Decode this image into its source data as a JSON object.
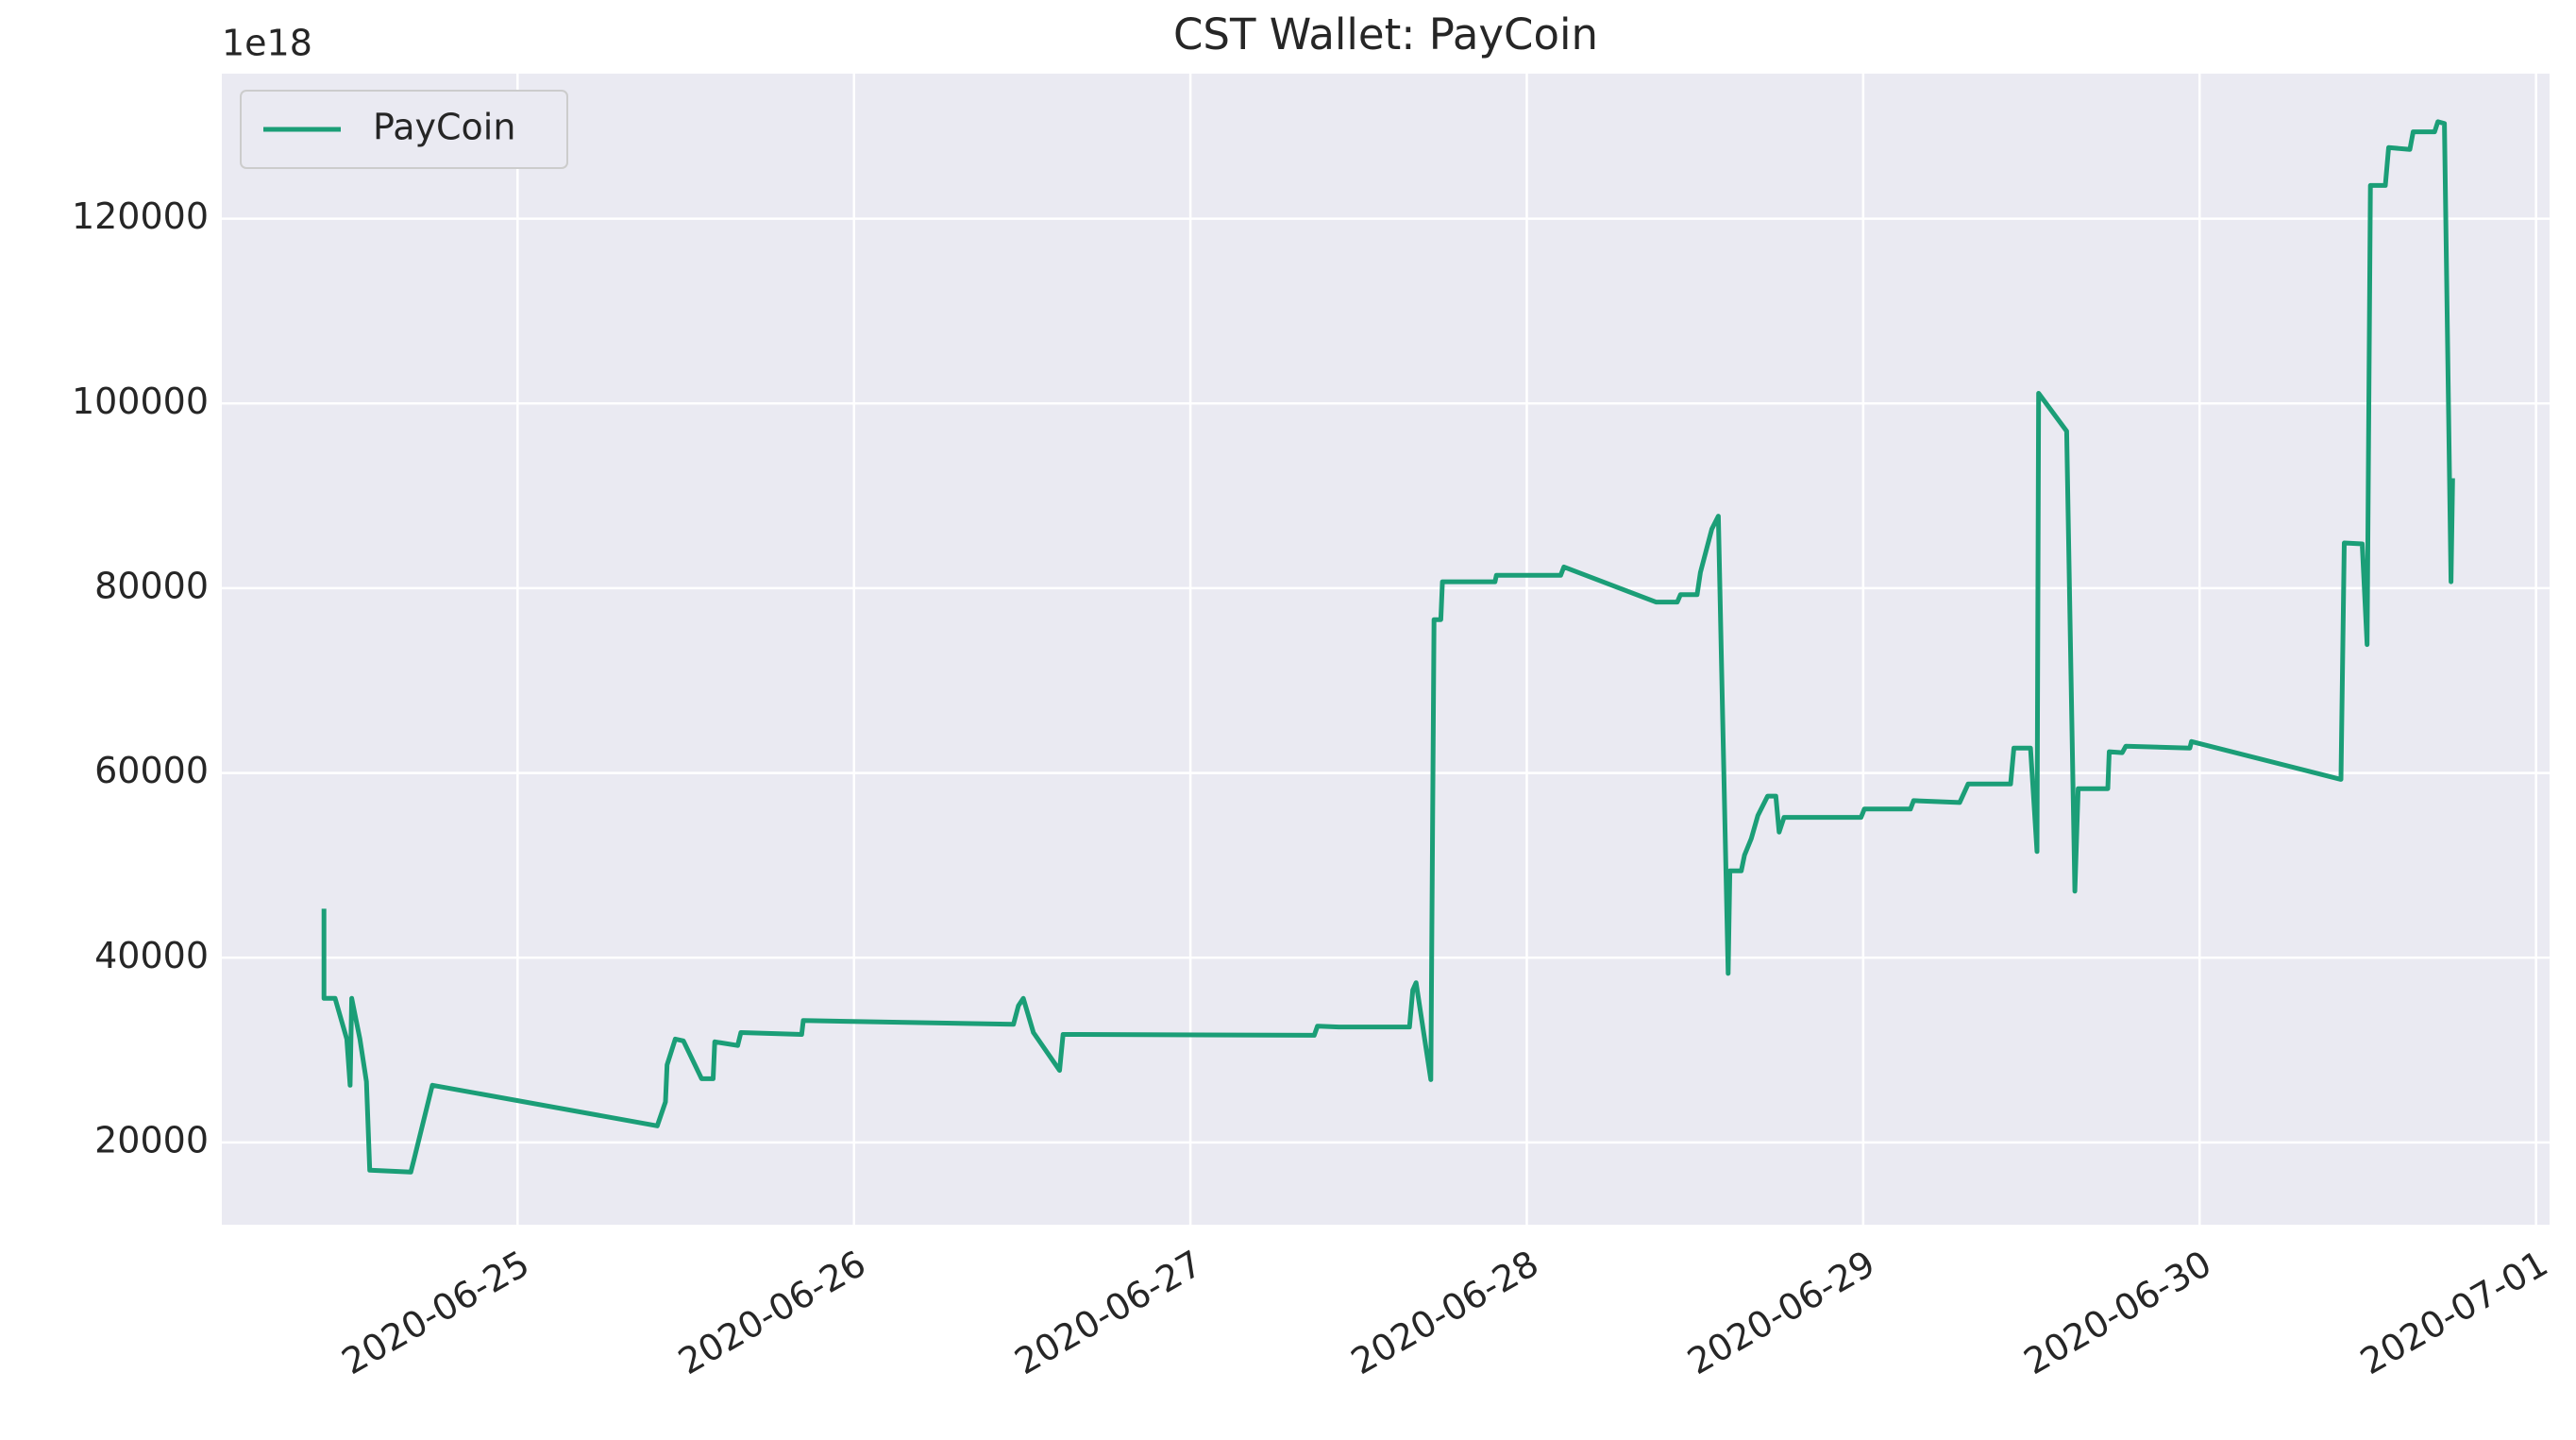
{
  "chart_data": {
    "type": "line",
    "title": "CST Wallet: PayCoin",
    "offset_label": "1e18",
    "x": [
      "2020-06-24T10:11",
      "2020-06-24T10:11",
      "2020-06-24T10:59",
      "2020-06-24T11:49",
      "2020-06-24T12:03",
      "2020-06-24T12:10",
      "2020-06-24T12:45",
      "2020-06-24T13:13",
      "2020-06-24T13:27",
      "2020-06-24T16:23",
      "2020-06-24T16:37",
      "2020-06-24T17:55",
      "2020-06-25T09:58",
      "2020-06-25T10:33",
      "2020-06-25T10:40",
      "2020-06-25T11:15",
      "2020-06-25T11:50",
      "2020-06-25T13:08",
      "2020-06-25T13:57",
      "2020-06-25T14:04",
      "2020-06-25T15:42",
      "2020-06-25T15:56",
      "2020-06-25T20:16",
      "2020-06-25T20:23",
      "2020-06-26T11:23",
      "2020-06-26T11:44",
      "2020-06-26T12:05",
      "2020-06-26T12:48",
      "2020-06-26T14:40",
      "2020-06-26T14:55",
      "2020-06-27T08:50",
      "2020-06-27T09:04",
      "2020-06-27T10:35",
      "2020-06-27T15:38",
      "2020-06-27T15:52",
      "2020-06-27T16:06",
      "2020-06-27T17:09",
      "2020-06-27T17:23",
      "2020-06-27T17:52",
      "2020-06-27T17:59",
      "2020-06-27T21:44",
      "2020-06-27T21:50",
      "2020-06-28T02:25",
      "2020-06-28T02:39",
      "2020-06-28T09:13",
      "2020-06-28T10:44",
      "2020-06-28T10:58",
      "2020-06-28T12:09",
      "2020-06-28T12:23",
      "2020-06-28T13:12",
      "2020-06-28T13:40",
      "2020-06-28T14:22",
      "2020-06-28T14:29",
      "2020-06-28T15:18",
      "2020-06-28T15:32",
      "2020-06-28T16:01",
      "2020-06-28T16:29",
      "2020-06-28T17:11",
      "2020-06-28T17:46",
      "2020-06-28T18:00",
      "2020-06-28T18:21",
      "2020-06-28T23:51",
      "2020-06-29T00:05",
      "2020-06-29T03:22",
      "2020-06-29T03:36",
      "2020-06-29T06:53",
      "2020-06-29T07:29",
      "2020-06-29T10:31",
      "2020-06-29T10:45",
      "2020-06-29T11:56",
      "2020-06-29T12:24",
      "2020-06-29T12:31",
      "2020-06-29T14:31",
      "2020-06-29T15:06",
      "2020-06-29T15:20",
      "2020-06-29T17:27",
      "2020-06-29T17:33",
      "2020-06-29T18:29",
      "2020-06-29T18:44",
      "2020-06-29T23:18",
      "2020-06-29T23:25",
      "2020-06-30T10:05",
      "2020-06-30T10:19",
      "2020-06-30T11:36",
      "2020-06-30T11:57",
      "2020-06-30T12:11",
      "2020-06-30T13:15",
      "2020-06-30T13:29",
      "2020-06-30T15:00",
      "2020-06-30T15:14",
      "2020-06-30T16:46",
      "2020-06-30T17:00",
      "2020-06-30T17:28",
      "2020-06-30T17:56",
      "2020-06-30T18:03"
    ],
    "series": [
      {
        "name": "PayCoin",
        "color": "#1b9e77",
        "values": [
          45300,
          35600,
          35600,
          31200,
          26200,
          35600,
          31200,
          26600,
          17000,
          16800,
          18200,
          26200,
          21800,
          24400,
          28400,
          31200,
          31000,
          26900,
          26900,
          30900,
          30500,
          31900,
          31700,
          33200,
          32800,
          34800,
          35600,
          31900,
          27800,
          31700,
          31600,
          32600,
          32500,
          32500,
          36500,
          37300,
          26800,
          76600,
          76600,
          80700,
          80700,
          81400,
          81400,
          82300,
          78500,
          78500,
          79300,
          79300,
          81700,
          86400,
          87800,
          38300,
          49400,
          49400,
          51100,
          52900,
          55400,
          57500,
          57500,
          53600,
          55200,
          55200,
          56100,
          56100,
          57000,
          56800,
          58800,
          58800,
          62700,
          62700,
          51500,
          101100,
          97000,
          47200,
          58300,
          58300,
          62300,
          62200,
          62900,
          62700,
          63400,
          59300,
          84900,
          84800,
          73900,
          123600,
          123600,
          127700,
          127500,
          129400,
          129400,
          130500,
          130300,
          80700,
          91900
        ]
      }
    ],
    "xlim": [
      "2020-06-24T02:54",
      "2020-07-01T00:58"
    ],
    "xticks": [
      "2020-06-25",
      "2020-06-26",
      "2020-06-27",
      "2020-06-28",
      "2020-06-29",
      "2020-06-30",
      "2020-07-01"
    ],
    "ylim": [
      11100,
      135700
    ],
    "yticks": [
      20000,
      40000,
      60000,
      80000,
      100000,
      120000
    ],
    "grid": true,
    "legend": "upper left"
  }
}
